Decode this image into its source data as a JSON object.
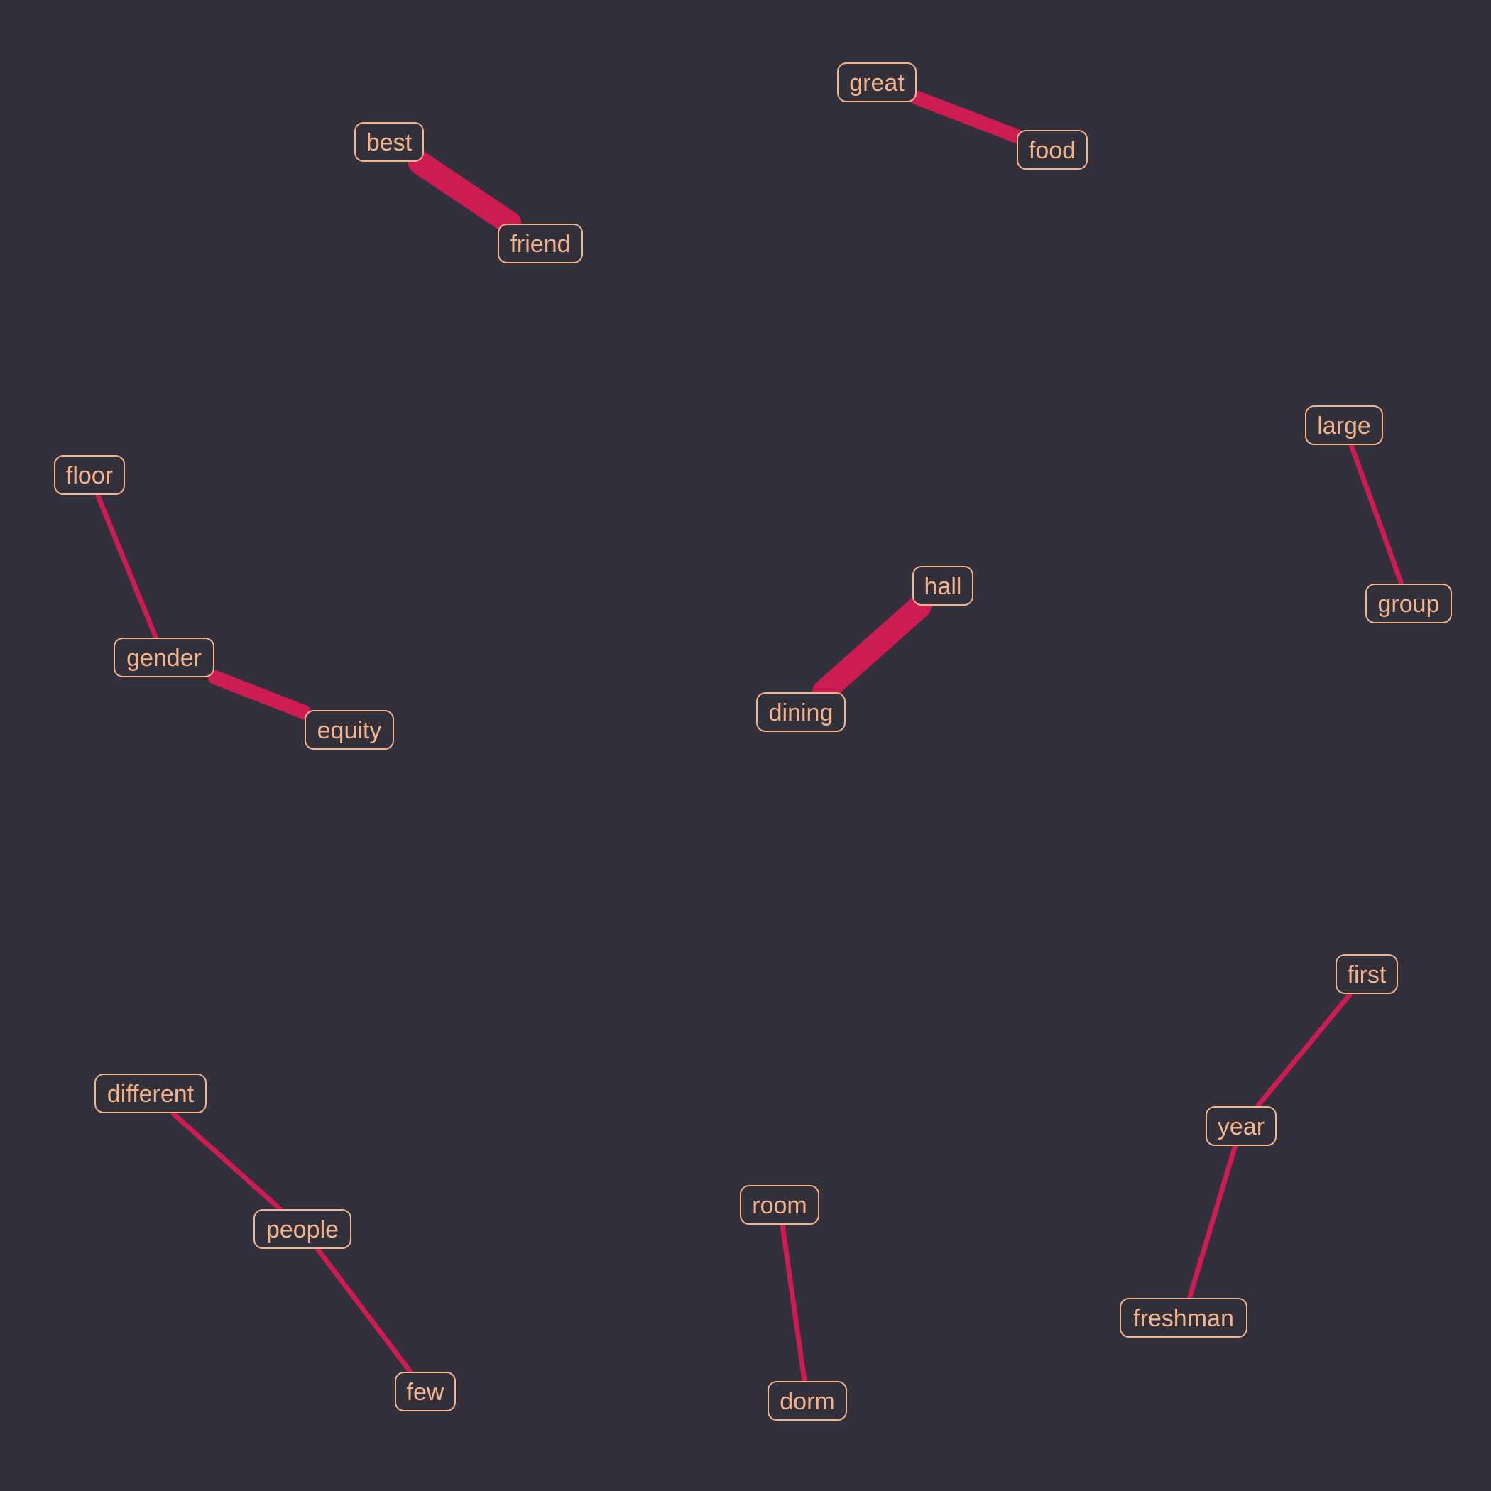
{
  "theme": {
    "background": "#31303b",
    "edge_color": "#cc1c52",
    "node_border": "#f3b48c",
    "node_text": "#f3b48c",
    "node_fill": "#31303b"
  },
  "nodes": [
    {
      "id": "best",
      "label": "best"
    },
    {
      "id": "friend",
      "label": "friend"
    },
    {
      "id": "great",
      "label": "great"
    },
    {
      "id": "food",
      "label": "food"
    },
    {
      "id": "large",
      "label": "large"
    },
    {
      "id": "group",
      "label": "group"
    },
    {
      "id": "floor",
      "label": "floor"
    },
    {
      "id": "gender",
      "label": "gender"
    },
    {
      "id": "equity",
      "label": "equity"
    },
    {
      "id": "hall",
      "label": "hall"
    },
    {
      "id": "dining",
      "label": "dining"
    },
    {
      "id": "first",
      "label": "first"
    },
    {
      "id": "year",
      "label": "year"
    },
    {
      "id": "freshman",
      "label": "freshman"
    },
    {
      "id": "different",
      "label": "different"
    },
    {
      "id": "people",
      "label": "people"
    },
    {
      "id": "few",
      "label": "few"
    },
    {
      "id": "room",
      "label": "room"
    },
    {
      "id": "dorm",
      "label": "dorm"
    }
  ],
  "edges": [
    {
      "source": "best",
      "target": "friend",
      "weight": 5
    },
    {
      "source": "great",
      "target": "food",
      "weight": 3
    },
    {
      "source": "large",
      "target": "group",
      "weight": 1
    },
    {
      "source": "floor",
      "target": "gender",
      "weight": 1
    },
    {
      "source": "gender",
      "target": "equity",
      "weight": 3
    },
    {
      "source": "hall",
      "target": "dining",
      "weight": 5
    },
    {
      "source": "first",
      "target": "year",
      "weight": 1
    },
    {
      "source": "year",
      "target": "freshman",
      "weight": 1
    },
    {
      "source": "different",
      "target": "people",
      "weight": 1
    },
    {
      "source": "people",
      "target": "few",
      "weight": 1
    },
    {
      "source": "room",
      "target": "dorm",
      "weight": 1
    }
  ]
}
